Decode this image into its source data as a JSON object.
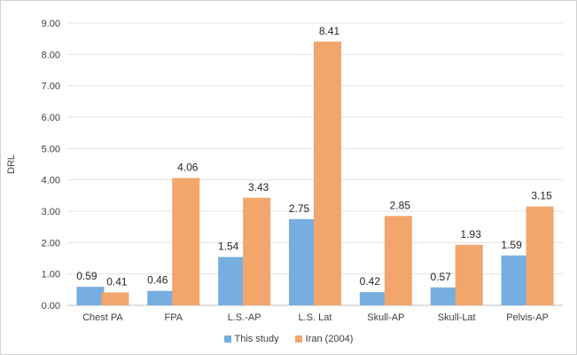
{
  "chart_data": {
    "type": "bar",
    "title": "",
    "xlabel": "",
    "ylabel": "DRL",
    "ylim": [
      0,
      9
    ],
    "yticks": [
      "0.00",
      "1.00",
      "2.00",
      "3.00",
      "4.00",
      "5.00",
      "6.00",
      "7.00",
      "8.00",
      "9.00"
    ],
    "grid": true,
    "legend_position": "bottom",
    "categories": [
      "Chest PA",
      "FPA",
      "L.S.-AP",
      "L.S. Lat",
      "Skull-AP",
      "Skull-Lat",
      "Pelvis-AP"
    ],
    "series": [
      {
        "name": "This study",
        "color": "#77aee0",
        "values": [
          0.59,
          0.46,
          1.54,
          2.75,
          0.42,
          0.57,
          1.59
        ],
        "labels": [
          "0.59",
          "0.46",
          "1.54",
          "2.75",
          "0.42",
          "0.57",
          "1.59"
        ]
      },
      {
        "name": "Iran (2004)",
        "color": "#f2a66c",
        "values": [
          0.41,
          4.06,
          3.43,
          8.41,
          2.85,
          1.93,
          3.15
        ],
        "labels": [
          "0.41",
          "4.06",
          "3.43",
          "8.41",
          "2.85",
          "1.93",
          "3.15"
        ]
      }
    ]
  }
}
